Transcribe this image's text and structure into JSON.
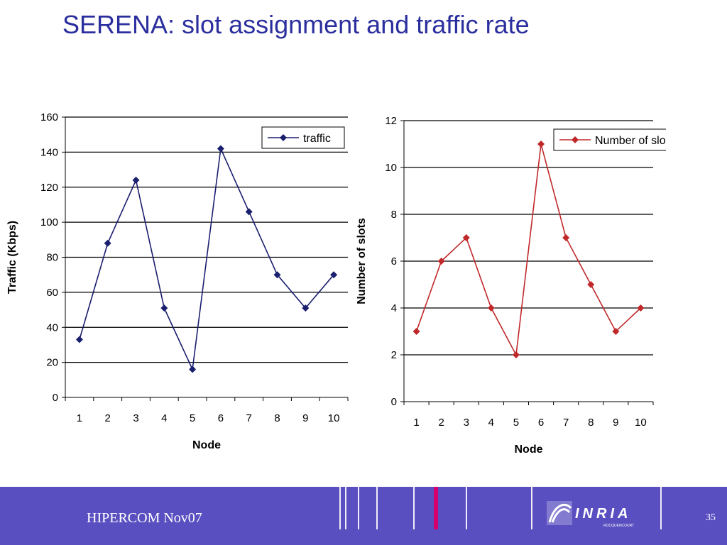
{
  "slide": {
    "title": "SERENA: slot assignment and traffic rate"
  },
  "footer": {
    "text": "HIPERCOM  Nov07",
    "page_number": "35",
    "logo_text": "INRIA",
    "logo_subtext": "ROCQUENCOURT",
    "accent": "#d6006c",
    "background": "#5a4fc0"
  },
  "chart_data": [
    {
      "type": "line",
      "title": "",
      "xlabel": "Node",
      "ylabel": "Traffic (Kbps)",
      "categories": [
        "1",
        "2",
        "3",
        "4",
        "5",
        "6",
        "7",
        "8",
        "9",
        "10"
      ],
      "series": [
        {
          "name": "traffic",
          "color": "#1a1f6e",
          "marker": "diamond",
          "values": [
            33,
            88,
            124,
            51,
            16,
            142,
            106,
            70,
            51,
            70
          ]
        }
      ],
      "ylim": [
        0,
        160
      ],
      "yticks": [
        0,
        20,
        40,
        60,
        80,
        100,
        120,
        140,
        160
      ],
      "grid": true,
      "legend": "top-right"
    },
    {
      "type": "line",
      "title": "",
      "xlabel": "Node",
      "ylabel": "Number of slots",
      "categories": [
        "1",
        "2",
        "3",
        "4",
        "5",
        "6",
        "7",
        "8",
        "9",
        "10"
      ],
      "series": [
        {
          "name": "Number of slots",
          "color": "#c0282a",
          "marker": "diamond",
          "values": [
            3,
            6,
            7,
            4,
            2,
            11,
            7,
            5,
            3,
            4
          ]
        }
      ],
      "ylim": [
        0,
        12
      ],
      "yticks": [
        0,
        2,
        4,
        6,
        8,
        10,
        12
      ],
      "grid": true,
      "legend": "top-right"
    }
  ]
}
